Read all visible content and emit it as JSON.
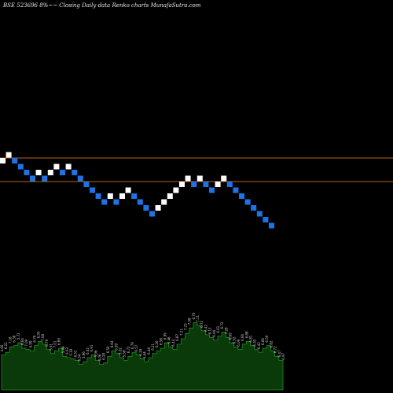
{
  "header": {
    "title": "BSE 523696  8%~~  Closing Daily data  Renko  charts MunafaSutra.com"
  },
  "colors": {
    "background": "#000000",
    "up_brick": "#ffffff",
    "down_brick": "#1e72e8",
    "reference_line": "#b5651d",
    "volume_fill": "#0a3a0a",
    "volume_stroke": "#1f8f1f",
    "volume_label": "#cfcfcf"
  },
  "chart_data": [
    {
      "type": "renko",
      "bricks": [
        "up",
        "up",
        "down",
        "down",
        "down",
        "down",
        "up",
        "down",
        "up",
        "up",
        "down",
        "up",
        "down",
        "down",
        "down",
        "down",
        "down",
        "down",
        "up",
        "down",
        "up",
        "up",
        "down",
        "down",
        "down",
        "down",
        "up",
        "up",
        "up",
        "up",
        "up",
        "up",
        "down",
        "up",
        "down",
        "down",
        "up",
        "up",
        "down",
        "down",
        "down",
        "down",
        "down",
        "down",
        "down",
        "down"
      ],
      "reference_levels": [
        "upper",
        "lower"
      ],
      "grid": false,
      "legend": "none"
    },
    {
      "type": "area",
      "series": [
        {
          "values": [
            26,
            28,
            32,
            33,
            35,
            31,
            30,
            29,
            33,
            36,
            34,
            30,
            27,
            29,
            31,
            25,
            24,
            23,
            22,
            19,
            21,
            24,
            26,
            22,
            19,
            20,
            25,
            29,
            27,
            24,
            22,
            25,
            28,
            26,
            23,
            21,
            24,
            27,
            29,
            31,
            35,
            32,
            30,
            34,
            38,
            42,
            46,
            50,
            48,
            44,
            41,
            39,
            37,
            40,
            43,
            39,
            35,
            32,
            30,
            34,
            36,
            33,
            30,
            28,
            31,
            33,
            29,
            25,
            22,
            20
          ]
        }
      ],
      "labels": [
        "4.66",
        "6.22",
        "7.18",
        "6.38",
        "5.72",
        "6.64",
        "7.09",
        "6.99",
        "6.79",
        "6.93",
        "7.08",
        "6.79",
        "5.91",
        "7.01",
        "6.69",
        "5.98",
        "6.03",
        "5.19",
        "6.52",
        "6.54",
        "5.96",
        "6.02",
        "6.91",
        "5.96",
        "4.06",
        "6.28",
        "6.50",
        "6.64",
        "6.99",
        "5.02",
        "5.58",
        "6.72",
        "6.79",
        "6.57",
        "6.29",
        "6.64",
        "6.44",
        "6.21",
        "6.26",
        "6.58",
        "6.99",
        "6.46",
        "6.44",
        "6.87",
        "7.21",
        "7.23",
        "7.08",
        "6.70",
        "7.11",
        "6.72",
        "6.42",
        "6.12",
        "6.94",
        "6.61",
        "6.72",
        "7.28",
        "6.69",
        "6.52",
        "6.09",
        "6.66",
        "6.88",
        "6.81",
        "6.30",
        "6.42",
        "6.66",
        "6.59",
        "6.82",
        "6.72",
        "6.47",
        "6.97"
      ]
    }
  ]
}
